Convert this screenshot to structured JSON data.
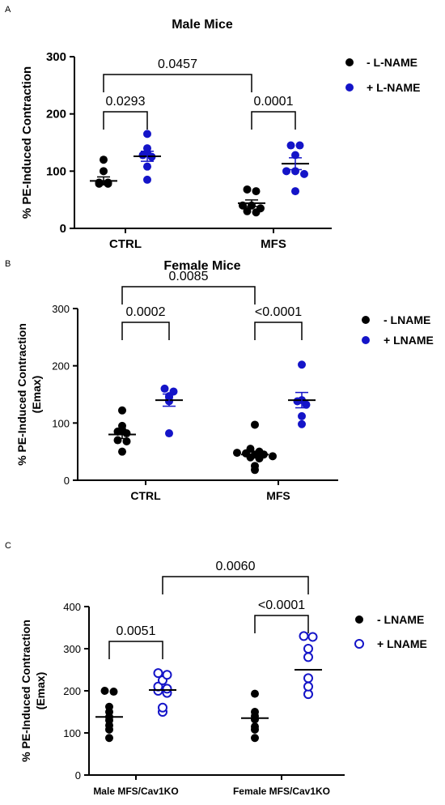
{
  "panels": [
    {
      "letter": "A",
      "title": "Male Mice",
      "colors": {
        "minus": "#000000",
        "plus": "#1414c8"
      },
      "legend": [
        "- L-NAME",
        "+ L-NAME"
      ],
      "chart_data": {
        "type": "scatter",
        "title": "Male Mice",
        "ylabel": "% PE-Induced Contraction",
        "ylim": [
          0,
          300
        ],
        "yticks": [
          0,
          100,
          200,
          300
        ],
        "categories": [
          "CTRL",
          "MFS"
        ],
        "series": [
          {
            "name": "- L-NAME",
            "marker": "filled",
            "groups": [
              [
                120,
                100,
                80,
                80,
                78,
                78
              ],
              [
                68,
                65,
                40,
                40,
                35,
                30,
                28
              ]
            ],
            "means": [
              83,
              44
            ]
          },
          {
            "name": "+ L-NAME",
            "marker": "filled",
            "groups": [
              [
                165,
                140,
                132,
                128,
                125,
                108,
                85
              ],
              [
                145,
                145,
                128,
                100,
                100,
                95,
                65
              ]
            ],
            "means": [
              126,
              113
            ]
          }
        ],
        "brackets": [
          {
            "label": "0.0293"
          },
          {
            "label": "0.0001"
          },
          {
            "label": "0.0457"
          }
        ]
      }
    },
    {
      "letter": "B",
      "title": "Female Mice",
      "colors": {
        "minus": "#000000",
        "plus": "#1414c8"
      },
      "legend": [
        "- LNAME",
        "+ LNAME"
      ],
      "chart_data": {
        "type": "scatter",
        "title": "Female Mice",
        "ylabel": "% PE-Induced Contraction (Emax)",
        "ylim": [
          0,
          300
        ],
        "yticks": [
          0,
          100,
          200,
          300
        ],
        "categories": [
          "CTRL",
          "MFS"
        ],
        "series": [
          {
            "name": "- LNAME",
            "marker": "filled",
            "groups": [
              [
                122,
                95,
                88,
                85,
                82,
                70,
                68,
                50
              ],
              [
                97,
                55,
                50,
                48,
                47,
                45,
                45,
                42,
                40,
                38,
                25,
                18
              ]
            ],
            "means": [
              80,
              45
            ]
          },
          {
            "name": "+ LNAME",
            "marker": "filled",
            "groups": [
              [
                160,
                155,
                147,
                145,
                138,
                82
              ],
              [
                202,
                140,
                138,
                132,
                112,
                98
              ]
            ],
            "means": [
              140,
              140
            ]
          }
        ],
        "brackets": [
          {
            "label": "0.0002"
          },
          {
            "label": "<0.0001"
          },
          {
            "label": "0.0085"
          }
        ]
      }
    },
    {
      "letter": "C",
      "title": "",
      "colors": {
        "minus": "#000000",
        "plus": "#1414c8"
      },
      "legend": [
        "- LNAME",
        "+ LNAME"
      ],
      "chart_data": {
        "type": "scatter",
        "title": "",
        "ylabel": "% PE-Induced Contraction (Emax)",
        "ylim": [
          0,
          400
        ],
        "yticks": [
          0,
          100,
          200,
          300,
          400
        ],
        "categories": [
          "Male MFS/Cav1KO",
          "Female MFS/Cav1KO"
        ],
        "series": [
          {
            "name": "- LNAME",
            "marker": "filled",
            "groups": [
              [
                200,
                198,
                162,
                150,
                138,
                130,
                118,
                108,
                88
              ],
              [
                193,
                150,
                140,
                132,
                115,
                108,
                88
              ]
            ],
            "means": [
              138,
              135
            ]
          },
          {
            "name": "+ LNAME",
            "marker": "open",
            "groups": [
              [
                242,
                238,
                225,
                210,
                205,
                200,
                195,
                160,
                150
              ],
              [
                330,
                328,
                300,
                280,
                230,
                210,
                192
              ]
            ],
            "means": [
              202,
              250
            ]
          }
        ],
        "brackets": [
          {
            "label": "0.0051"
          },
          {
            "label": "<0.0001"
          },
          {
            "label": "0.0060"
          }
        ]
      }
    }
  ]
}
